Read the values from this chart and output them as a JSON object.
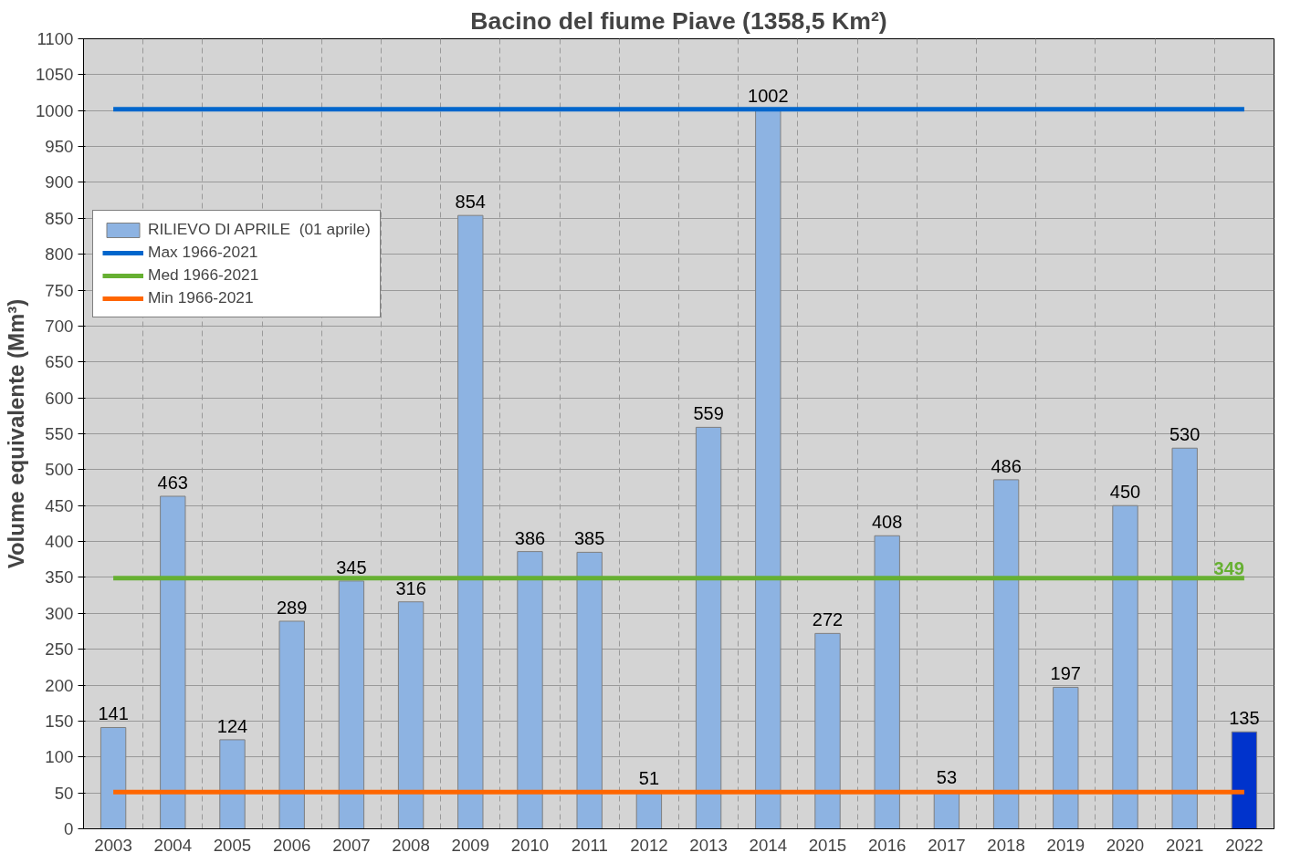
{
  "chart_data": {
    "type": "bar",
    "title": "Bacino del fiume Piave (1358,5 Km²)",
    "ylabel": "Volume equivalente (Mm³)",
    "categories": [
      "2003",
      "2004",
      "2005",
      "2006",
      "2007",
      "2008",
      "2009",
      "2010",
      "2011",
      "2012",
      "2013",
      "2014",
      "2015",
      "2016",
      "2017",
      "2018",
      "2019",
      "2020",
      "2021",
      "2022"
    ],
    "series": [
      {
        "name": "RILIEVO DI APRILE  (01 aprile)",
        "colors": [
          "#8db3e2",
          "#8db3e2",
          "#8db3e2",
          "#8db3e2",
          "#8db3e2",
          "#8db3e2",
          "#8db3e2",
          "#8db3e2",
          "#8db3e2",
          "#8db3e2",
          "#8db3e2",
          "#8db3e2",
          "#8db3e2",
          "#8db3e2",
          "#8db3e2",
          "#8db3e2",
          "#8db3e2",
          "#8db3e2",
          "#8db3e2",
          "#0033cc"
        ],
        "values": [
          141,
          463,
          124,
          289,
          345,
          316,
          854,
          386,
          385,
          51,
          559,
          1002,
          272,
          408,
          53,
          486,
          197,
          450,
          530,
          135
        ],
        "value_labels": [
          "141",
          "463",
          "124",
          "289",
          "345",
          "316",
          "854",
          "386",
          "385",
          "51",
          "559",
          "1002",
          "272",
          "408",
          "53",
          "486",
          "197",
          "450",
          "530",
          "135"
        ]
      },
      {
        "name": "Max 1966-2021",
        "type": "line",
        "color": "#0066cc",
        "values": [
          1002,
          1002,
          1002,
          1002,
          1002,
          1002,
          1002,
          1002,
          1002,
          1002,
          1002,
          1002,
          1002,
          1002,
          1002,
          1002,
          1002,
          1002,
          1002,
          1002
        ]
      },
      {
        "name": "Med 1966-2021",
        "type": "line",
        "color": "#66b032",
        "values": [
          349,
          349,
          349,
          349,
          349,
          349,
          349,
          349,
          349,
          349,
          349,
          349,
          349,
          349,
          349,
          349,
          349,
          349,
          349,
          349
        ],
        "value_labels": [
          null,
          null,
          null,
          null,
          null,
          null,
          null,
          null,
          null,
          null,
          null,
          null,
          null,
          null,
          null,
          null,
          null,
          null,
          null,
          "349"
        ]
      },
      {
        "name": "Min 1966-2021",
        "type": "line",
        "color": "#ff6600",
        "values": [
          51,
          51,
          51,
          51,
          51,
          51,
          51,
          51,
          51,
          51,
          51,
          51,
          51,
          51,
          51,
          51,
          51,
          51,
          51,
          51
        ]
      }
    ],
    "ylim": [
      0,
      1100
    ],
    "yticks": [
      0,
      50,
      100,
      150,
      200,
      250,
      300,
      350,
      400,
      450,
      500,
      550,
      600,
      650,
      700,
      750,
      800,
      850,
      900,
      950,
      1000,
      1050,
      1100
    ],
    "grid": true,
    "legend": "top left"
  }
}
